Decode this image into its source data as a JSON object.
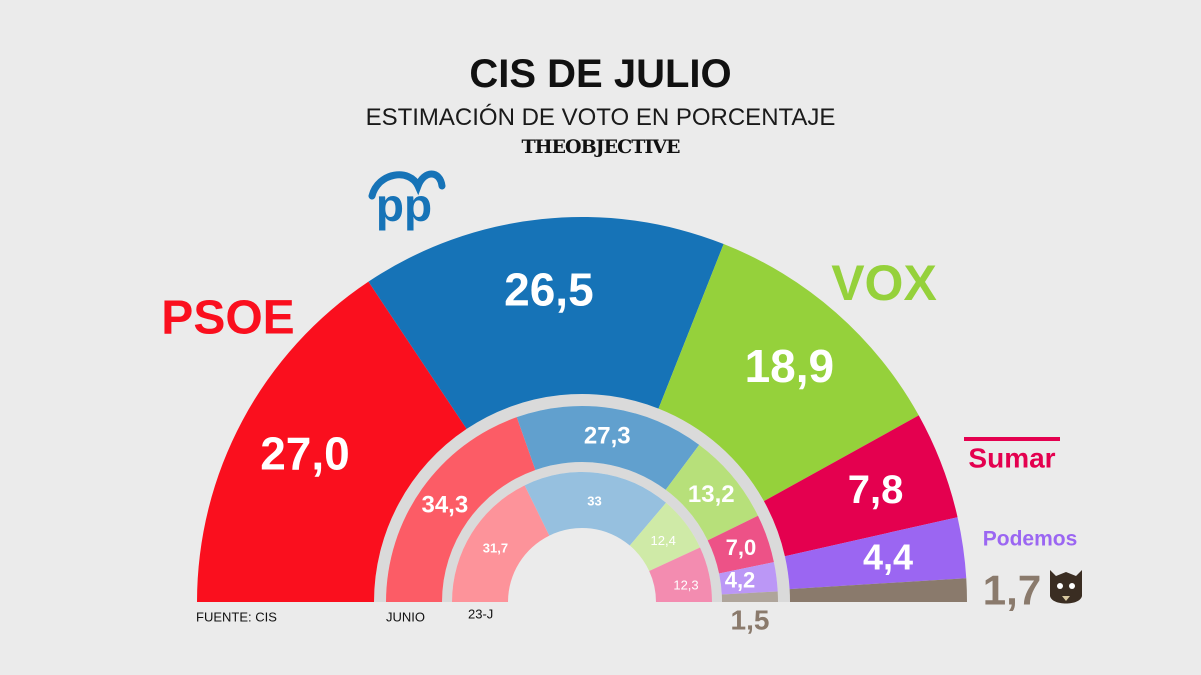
{
  "header": {
    "title": "CIS DE JULIO",
    "subtitle": "ESTIMACIÓN DE VOTO EN PORCENTAJE",
    "brand_light": "THE",
    "brand_bold": "OBJECTIVE"
  },
  "source": "FUENTE: CIS",
  "colors": {
    "psoe": "#fa0f1e",
    "pp": "#1673b7",
    "vox": "#95d13b",
    "sumar": "#e4004f",
    "podemos": "#9b66f2",
    "otros": "#8a7a6c"
  },
  "chart_data": [
    {
      "type": "pie",
      "title": "CIS DE JULIO",
      "ring": "julio",
      "categories": [
        "PSOE",
        "PP",
        "VOX",
        "Sumar",
        "Podemos",
        ""
      ],
      "values": [
        27.0,
        26.5,
        18.9,
        7.8,
        4.4,
        1.7
      ],
      "labels": [
        "27,0",
        "26,5",
        "18,9",
        "7,8",
        "4,4",
        "1,7"
      ],
      "party_labels": [
        "PSOE",
        "PP",
        "VOX",
        "Sumar",
        "Podemos",
        ""
      ]
    },
    {
      "type": "pie",
      "ring": "junio",
      "ring_label": "JUNIO",
      "categories": [
        "PSOE",
        "PP",
        "VOX",
        "Sumar",
        "Podemos",
        ""
      ],
      "values": [
        34.3,
        27.3,
        13.2,
        7.0,
        4.2,
        1.5
      ],
      "labels": [
        "34,3",
        "27,3",
        "13,2",
        "7,0",
        "4,2",
        "1,5"
      ]
    },
    {
      "type": "pie",
      "ring": "23-J",
      "ring_label": "23-J",
      "categories": [
        "PSOE",
        "PP",
        "VOX",
        "Sumar"
      ],
      "values": [
        31.7,
        33,
        12.4,
        12.3
      ],
      "labels": [
        "31,7",
        "33",
        "12,4",
        "12,3"
      ]
    }
  ]
}
